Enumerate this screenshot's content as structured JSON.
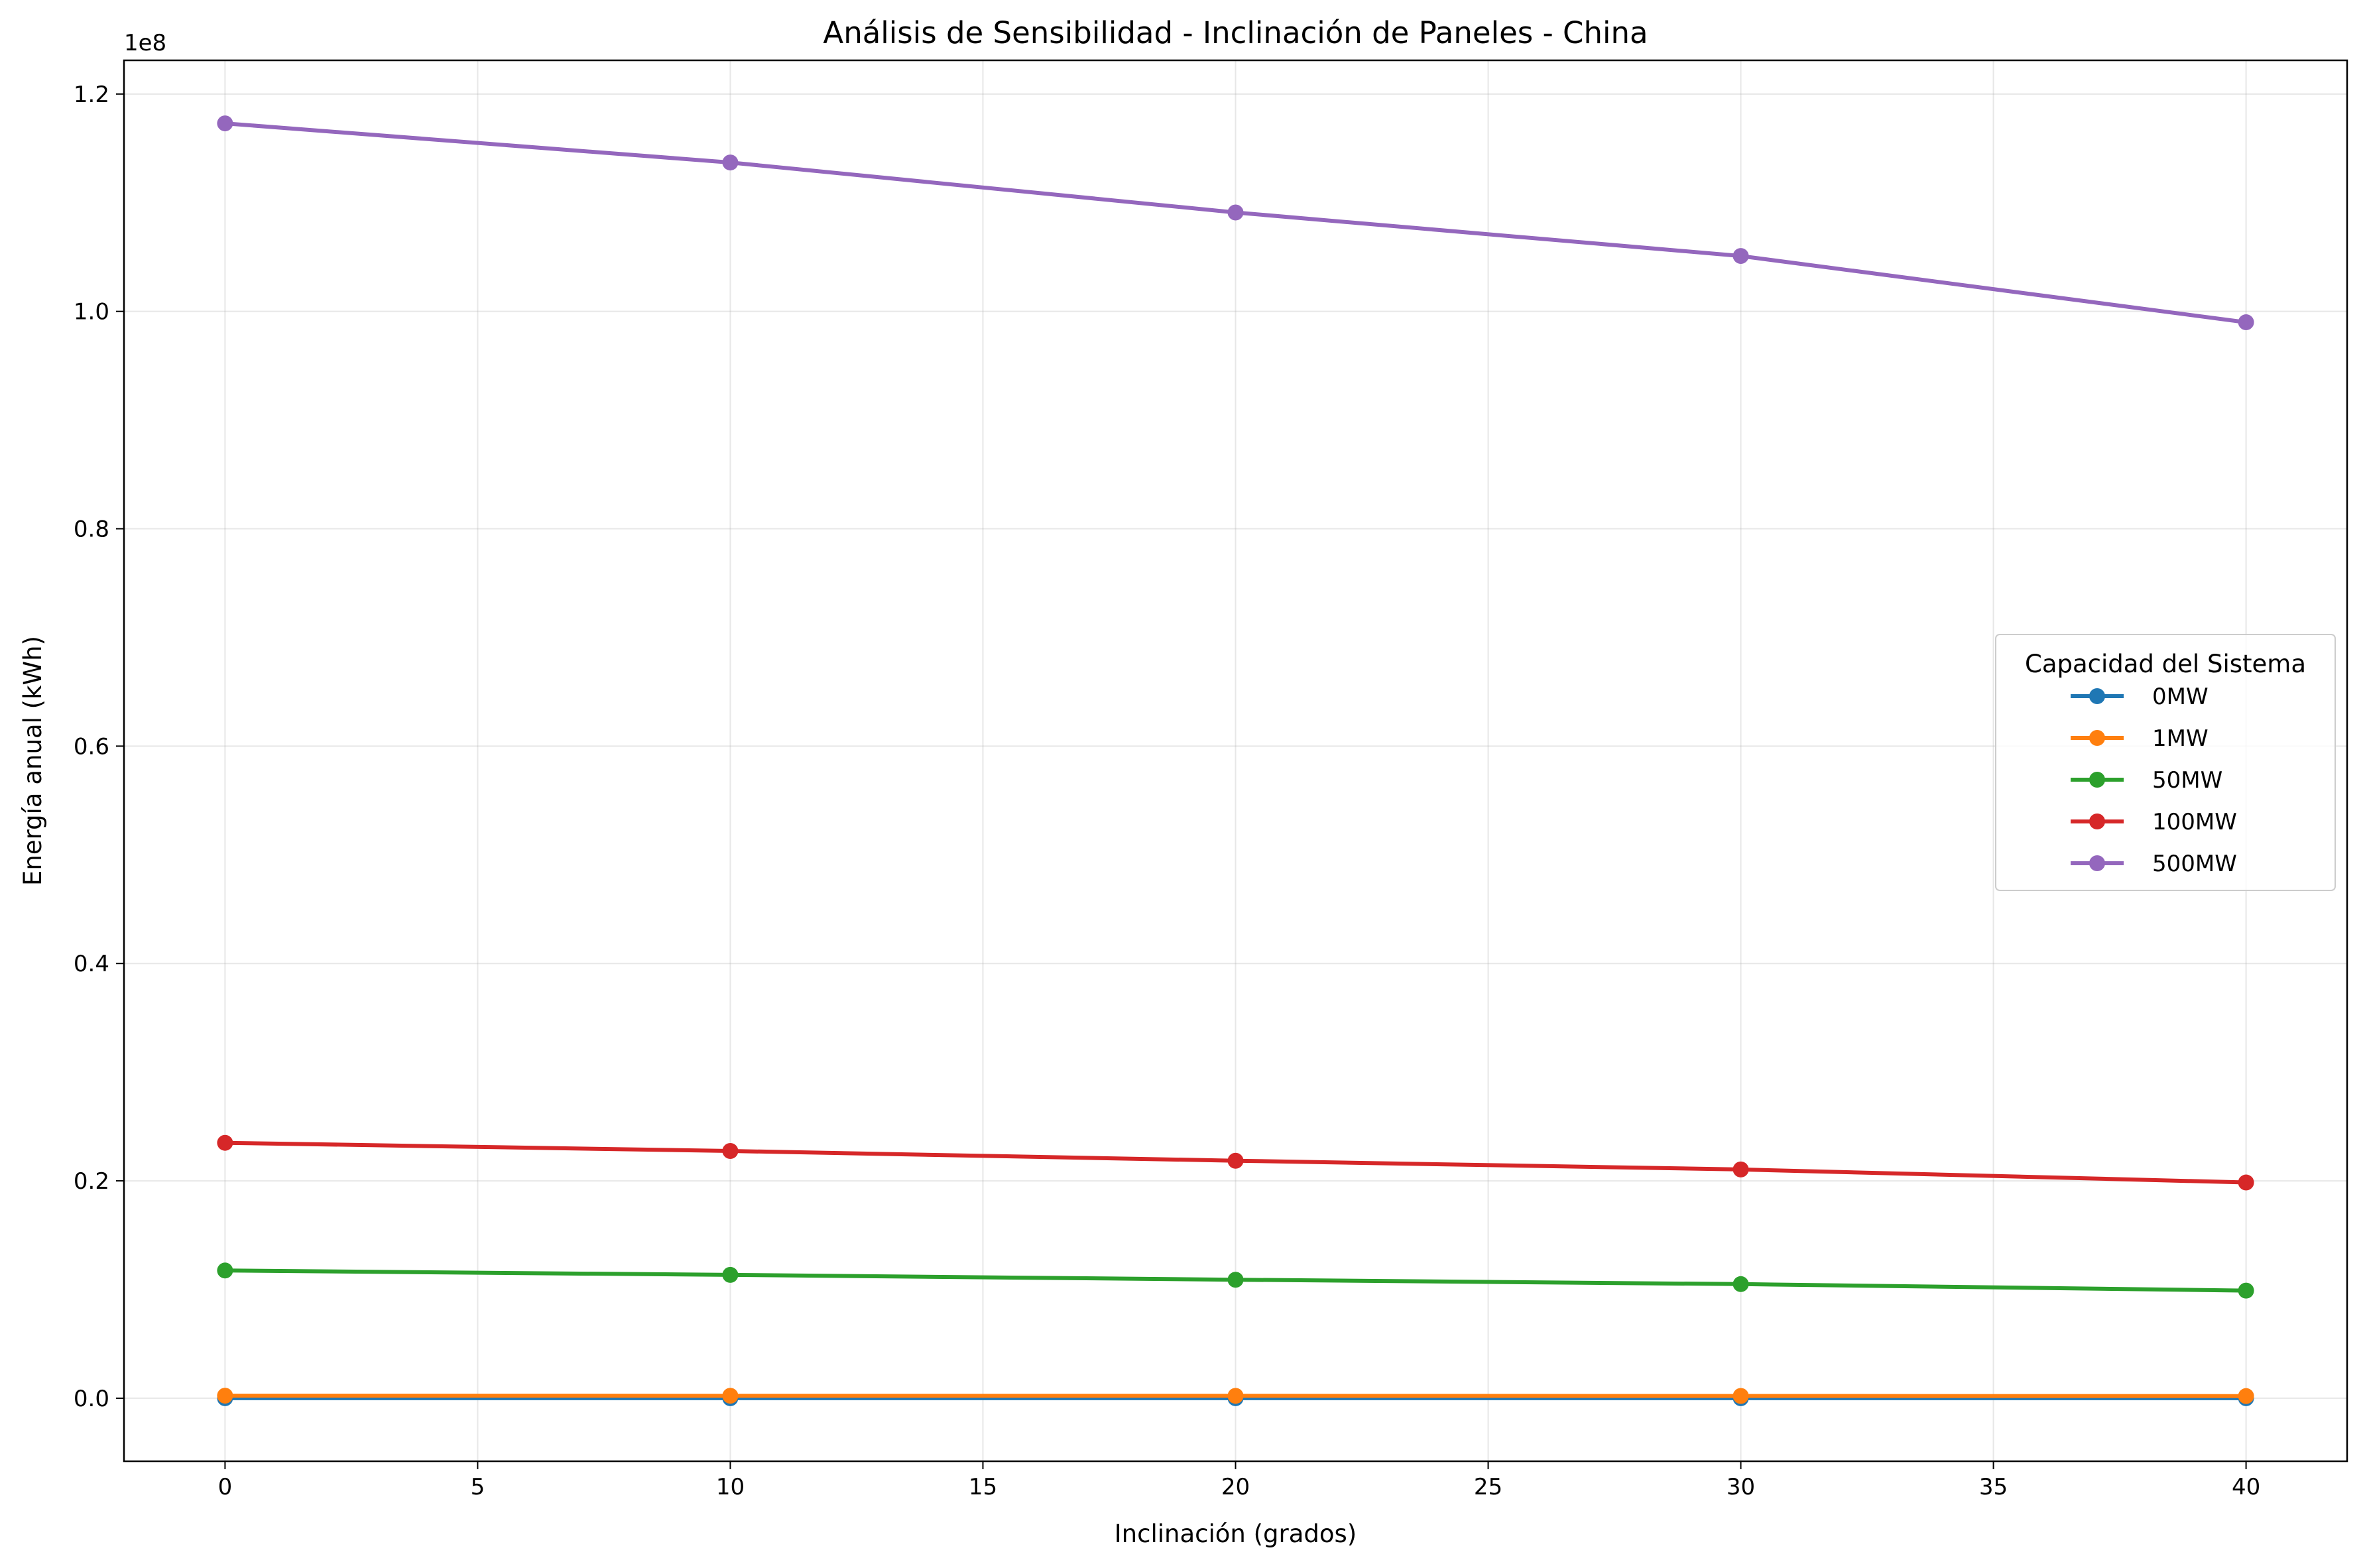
{
  "chart_data": {
    "type": "line",
    "title": "Análisis de Sensibilidad - Inclinación de Paneles - China",
    "xlabel": "Inclinación (grados)",
    "ylabel": "Energía anual (kWh)",
    "y_offset_label": "1e8",
    "x": [
      0,
      10,
      20,
      30,
      40
    ],
    "xlim": [
      -2,
      42
    ],
    "ylim": [
      -5800000,
      123100000
    ],
    "x_ticks": [
      0,
      5,
      10,
      15,
      20,
      25,
      30,
      35,
      40
    ],
    "x_tick_labels": [
      "0",
      "5",
      "10",
      "15",
      "20",
      "25",
      "30",
      "35",
      "40"
    ],
    "y_ticks": [
      0,
      20000000,
      40000000,
      60000000,
      80000000,
      100000000,
      120000000
    ],
    "y_tick_labels": [
      "0.0",
      "0.2",
      "0.4",
      "0.6",
      "0.8",
      "1.0",
      "1.2"
    ],
    "grid": true,
    "legend_title": "Capacidad del Sistema",
    "legend_position": "center-right",
    "series": [
      {
        "name": "0MW",
        "color": "#1f77b4",
        "values": [
          0,
          0,
          0,
          0,
          0
        ]
      },
      {
        "name": "1MW",
        "color": "#ff7f0e",
        "values": [
          235000,
          227000,
          218000,
          210000,
          198000
        ]
      },
      {
        "name": "50MW",
        "color": "#2ca02c",
        "values": [
          11750000,
          11350000,
          10900000,
          10500000,
          9900000
        ]
      },
      {
        "name": "100MW",
        "color": "#d62728",
        "values": [
          23500000,
          22750000,
          21850000,
          21050000,
          19850000
        ]
      },
      {
        "name": "500MW",
        "color": "#9467bd",
        "values": [
          117300000,
          113700000,
          109100000,
          105100000,
          99000000
        ]
      }
    ]
  }
}
